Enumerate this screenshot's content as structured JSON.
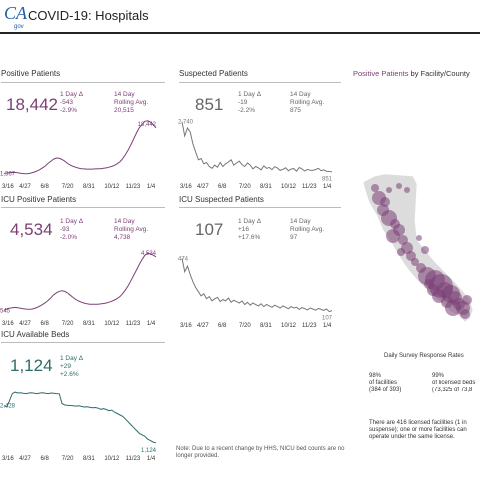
{
  "app": {
    "logo": "CA",
    "logo_sub": "gov",
    "title": "COVID-19: Hospitals"
  },
  "x_ticks": [
    "3/16",
    "4/27",
    "6/8",
    "7/20",
    "8/31",
    "10/12",
    "11/23",
    "1/4"
  ],
  "positive": {
    "title": "Positive Patients",
    "value": "18,442",
    "delta_label": "1 Day Δ",
    "delta": "-543",
    "delta_pct": "-2.9%",
    "avg_label": "14 Day\nRolling Avg.",
    "avg": "20,515",
    "start": "1,367",
    "end": "18,442",
    "color": "#7b3f76",
    "series": [
      1367,
      1520,
      1660,
      1760,
      1730,
      1610,
      1450,
      1300,
      1280,
      1350,
      1580,
      1900,
      2300,
      2800,
      3500,
      4200,
      5200,
      6000,
      6750,
      7150,
      7050,
      6600,
      5950,
      5100,
      4500,
      4000,
      3650,
      3350,
      3150,
      3050,
      3000,
      3000,
      3000,
      3050,
      3100,
      3150,
      3300,
      3450,
      3700,
      4000,
      4400,
      5000,
      5800,
      7000,
      8500,
      10300,
      12300,
      14500,
      16700,
      18600,
      19800,
      20900,
      21100,
      20600,
      19700,
      18442
    ]
  },
  "suspected": {
    "title": "Suspected Patients",
    "value": "851",
    "delta_label": "1 Day Δ",
    "delta": "-19",
    "delta_pct": "-2.2%",
    "avg_label": "14 Day\nRolling Avg.",
    "avg": "875",
    "start": "2,740",
    "end": "851",
    "color": "#777",
    "series": [
      2740,
      2200,
      2500,
      2350,
      1900,
      1600,
      1300,
      1350,
      1150,
      1200,
      1050,
      980,
      1100,
      1020,
      1200,
      1050,
      1150,
      1220,
      1300,
      1100,
      1180,
      1250,
      1120,
      1050,
      1180,
      1100,
      960,
      1050,
      1000,
      920,
      1070,
      980,
      1010,
      930,
      1040,
      990,
      900,
      940,
      1000,
      890,
      950,
      970,
      870,
      1010,
      960,
      880,
      940,
      910,
      900,
      930,
      980,
      890,
      920,
      870,
      860,
      851
    ]
  },
  "icu": {
    "title": "ICU Positive Patients",
    "value": "4,534",
    "delta_label": "1 Day Δ",
    "delta": "-93",
    "delta_pct": "-2.0%",
    "avg_label": "14 Day\nRolling Avg.",
    "avg": "4,738",
    "start": "545",
    "end": "4,534",
    "color": "#7b3f76",
    "series": [
      545,
      630,
      700,
      740,
      760,
      740,
      700,
      660,
      630,
      620,
      630,
      680,
      760,
      860,
      980,
      1120,
      1280,
      1480,
      1700,
      1850,
      1960,
      2000,
      1950,
      1830,
      1670,
      1500,
      1350,
      1240,
      1150,
      1080,
      1030,
      1000,
      990,
      990,
      1000,
      1020,
      1050,
      1090,
      1150,
      1220,
      1310,
      1420,
      1580,
      1800,
      2080,
      2400,
      2780,
      3180,
      3580,
      3980,
      4350,
      4650,
      4800,
      4760,
      4650,
      4534
    ]
  },
  "icu_suspected": {
    "title": "ICU Suspected Patients",
    "value": "107",
    "delta_label": "1 Day Δ",
    "delta": "+16",
    "delta_pct": "+17.6%",
    "avg_label": "14 Day\nRolling Avg.",
    "avg": "97",
    "start": "474",
    "end": "107",
    "color": "#777",
    "series": [
      474,
      380,
      420,
      360,
      310,
      270,
      240,
      210,
      225,
      190,
      205,
      175,
      190,
      200,
      170,
      185,
      175,
      195,
      165,
      180,
      170,
      160,
      175,
      150,
      165,
      145,
      160,
      150,
      140,
      155,
      135,
      150,
      140,
      130,
      145,
      135,
      125,
      140,
      130,
      120,
      135,
      125,
      130,
      115,
      128,
      120,
      112,
      125,
      118,
      110,
      122,
      115,
      108,
      118,
      100,
      107
    ]
  },
  "beds": {
    "title": "ICU Available Beds",
    "value": "1,124",
    "delta_label": "1 Day Δ",
    "delta": "+29",
    "delta_pct": "+2.6%",
    "start": "2,428",
    "end": "1,124",
    "color": "#2e6b6b",
    "series": [
      2428,
      2380,
      2600,
      2850,
      2900,
      2870,
      2880,
      2860,
      2850,
      2870,
      2880,
      2860,
      2850,
      2870,
      2880,
      2860,
      2850,
      2870,
      2860,
      2850,
      2840,
      2500,
      2450,
      2440,
      2430,
      2420,
      2410,
      2420,
      2400,
      2380,
      2390,
      2370,
      2350,
      2360,
      2340,
      2300,
      2320,
      2290,
      2250,
      2270,
      2200,
      2150,
      2100,
      2050,
      1950,
      1850,
      1750,
      1650,
      1550,
      1450,
      1400,
      1350,
      1250,
      1200,
      1150,
      1124
    ]
  },
  "note": "Note: Due to a recent change by HHS, NICU bed counts are no longer provided.",
  "map": {
    "title_highlight": "Positive Patients",
    "title_rest": " by Facility/County",
    "survey_title": "Daily Survey Response Rates",
    "pct1": "98%",
    "pct1_label": "of facilities",
    "pct1_detail": "(384 of 393)",
    "pct2": "99%",
    "pct2_label": "of licensed beds",
    "pct2_detail": "(73,325 of 73,8",
    "footnote": "There are 416 licensed facilities (1 in suspense); one or more facilities can operate under the same license."
  }
}
